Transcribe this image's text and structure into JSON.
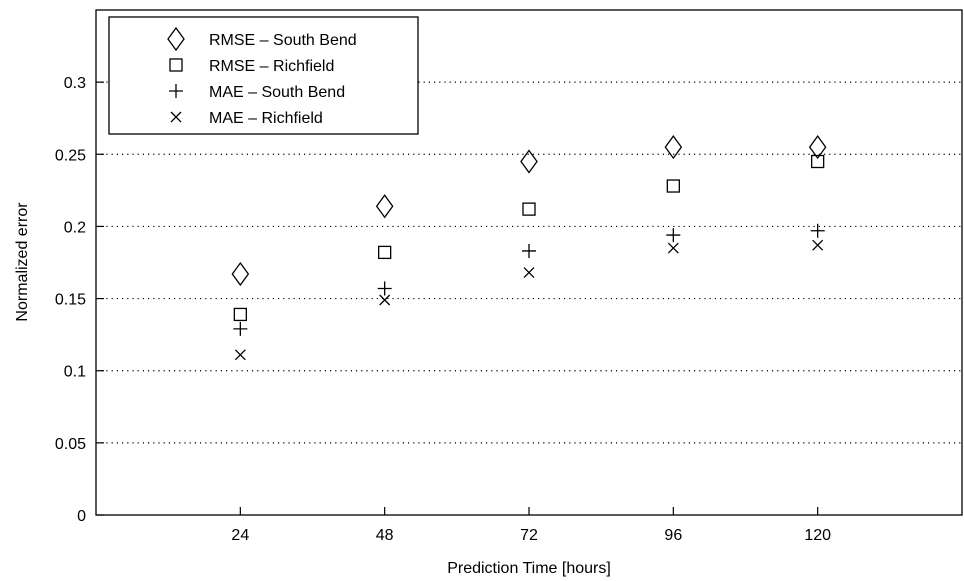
{
  "chart_data": {
    "type": "scatter",
    "title": "",
    "xlabel": "Prediction Time [hours]",
    "ylabel": "Normalized error",
    "x": [
      24,
      48,
      72,
      96,
      120
    ],
    "xticks": [
      "24",
      "48",
      "72",
      "96",
      "120"
    ],
    "yticks": [
      "0",
      "0.05",
      "0.1",
      "0.15",
      "0.2",
      "0.25",
      "0.3"
    ],
    "xlim": [
      0,
      144
    ],
    "ylim": [
      0,
      0.35
    ],
    "grid": "horizontal dotted",
    "legend_position": "top-left",
    "series": [
      {
        "name": "RMSE – South Bend",
        "marker": "diamond",
        "values": [
          0.167,
          0.214,
          0.245,
          0.255,
          0.255
        ]
      },
      {
        "name": "RMSE – Richfield",
        "marker": "square",
        "values": [
          0.139,
          0.182,
          0.212,
          0.228,
          0.245
        ]
      },
      {
        "name": "MAE – South Bend",
        "marker": "plus",
        "values": [
          0.129,
          0.157,
          0.183,
          0.194,
          0.197
        ]
      },
      {
        "name": "MAE – Richfield",
        "marker": "x",
        "values": [
          0.111,
          0.149,
          0.168,
          0.185,
          0.187
        ]
      }
    ],
    "color": "#000000"
  }
}
